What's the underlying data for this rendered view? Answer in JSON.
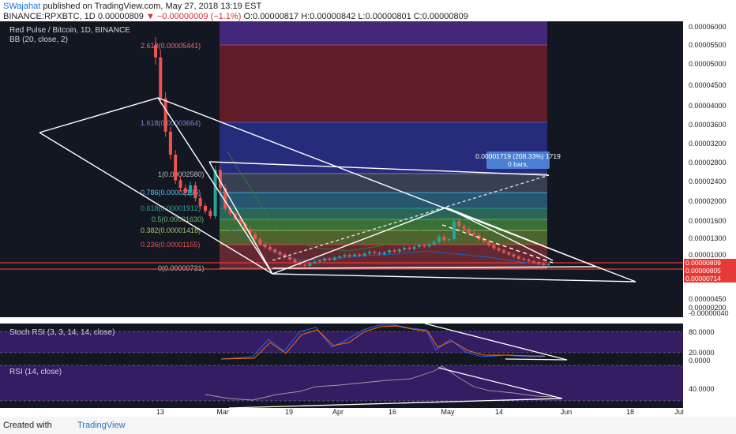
{
  "header": {
    "author": "SWajahat",
    "published": "published on TradingView.com, May 27, 2018 13:19 EST",
    "symbol": "BINANCE:RPXBTC, 1D",
    "last": "0.00000809",
    "change_arrow": "▼",
    "change": "−0.00000009 (−1.1%)",
    "ohlc": "O:0.00000817 H:0.00000842 L:0.00000801 C:0.00000809"
  },
  "chart_data": {
    "type": "candlestick",
    "title": "Red Pulse / Bitcoin, 1D, BINANCE",
    "indicator_bb": "BB (20, close, 2)",
    "x_ticks": [
      "13",
      "Mar",
      "19",
      "Apr",
      "16",
      "May",
      "14",
      "Jun",
      "18",
      "Jul"
    ],
    "y_ticks": [
      "0.00006000",
      "0.00005500",
      "0.00005000",
      "0.00004500",
      "0.00004000",
      "0.00003600",
      "0.00003200",
      "0.00002800",
      "0.00002400",
      "0.00002000",
      "0.00001600",
      "0.00001300",
      "0.00001000",
      "0.00000450",
      "0.00000200",
      "-0.00000040"
    ],
    "price_tags": [
      {
        "value": "0.00000809",
        "color": "#e53935"
      },
      {
        "value": "0.00000805",
        "color": "#e53935"
      },
      {
        "value": "0.00000714",
        "color": "#e53935"
      }
    ],
    "fib_levels": [
      {
        "label": "2.618(0.00005441)",
        "price": 5.441e-05
      },
      {
        "label": "1.618(0.00003664)",
        "price": 3.664e-05
      },
      {
        "label": "1(0.00002580)",
        "price": 2.58e-05
      },
      {
        "label": "0.786(0.00002195)",
        "price": 2.195e-05
      },
      {
        "label": "0.618(0.00001912)",
        "price": 1.912e-05
      },
      {
        "label": "0.5(0.00001630)",
        "price": 1.63e-05
      },
      {
        "label": "0.382(0.00001418)",
        "price": 1.418e-05
      },
      {
        "label": "0.236(0.00001155)",
        "price": 1.155e-05
      },
      {
        "label": "0(0.00000731)",
        "price": 7.31e-06
      }
    ],
    "measure_label": "0.00001719 (208.33%) 1719",
    "measure_bars": "0 bars,",
    "candles_close": [
      4.85e-05,
      4.05e-05,
      3.4e-05,
      2.95e-05,
      2.45e-05,
      2.3e-05,
      2.2e-05,
      2.35e-05,
      2.1e-05,
      1.95e-05,
      1.85e-05,
      1.75e-05,
      2.65e-05,
      2.3e-05,
      1.9e-05,
      1.8e-05,
      1.7e-05,
      1.6e-05,
      1.5e-05,
      1.4e-05,
      1.3e-05,
      1.2e-05,
      1.15e-05,
      1.1e-05,
      1.05e-05,
      1e-05,
      9.5e-06,
      9e-06,
      8.5e-06,
      8e-06,
      7.8e-06,
      8.3e-06,
      8.6e-06,
      8.8e-06,
      9.2e-06,
      9e-06,
      9.4e-06,
      9.6e-06,
      9.9e-06,
      9.7e-06,
      1e-05,
      9.8e-06,
      1.02e-05,
      1.05e-05,
      1.03e-05,
      1.01e-05,
      1.04e-05,
      1.08e-05,
      1.06e-05,
      1.1e-05,
      1.13e-05,
      1.11e-05,
      1.15e-05,
      1.18e-05,
      1.16e-05,
      1.2e-05,
      1.25e-05,
      1.35e-05,
      1.28e-05,
      1.3e-05,
      1.65e-05,
      1.55e-05,
      1.5e-05,
      1.42e-05,
      1.38e-05,
      1.3e-05,
      1.25e-05,
      1.18e-05,
      1.12e-05,
      1.08e-05,
      1.04e-05,
      1e-05,
      9.6e-06,
      9.2e-06,
      9e-06,
      8.7e-06,
      8.5e-06,
      8.2e-06,
      8e-06,
      8.1e-06
    ],
    "stoch": {
      "title": "Stoch RSI (3, 3, 14, 14, close)",
      "y_ticks": [
        "80.0000",
        "20.0000",
        "0.0000"
      ]
    },
    "rsi": {
      "title": "RSI (14, close)",
      "y_ticks": [
        "40.0000"
      ]
    }
  },
  "footer": {
    "created_with": "Created with",
    "brand": "TradingView"
  }
}
